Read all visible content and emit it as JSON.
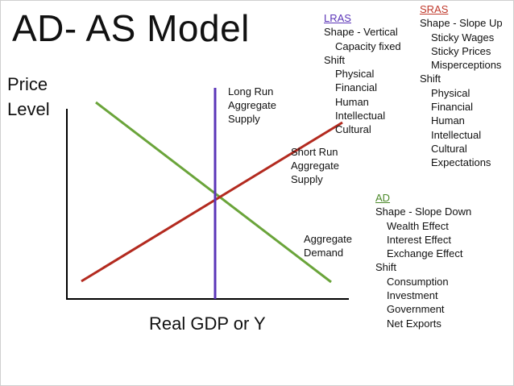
{
  "title": "AD- AS Model",
  "axes": {
    "ylabel_line1": "Price",
    "ylabel_line2": "Level",
    "xlabel": "Real GDP or Y"
  },
  "curves": {
    "lras": {
      "line1": "Long Run",
      "line2": "Aggregate",
      "line3": "Supply",
      "color": "#5b35b8"
    },
    "sras": {
      "line1": "Short Run",
      "line2": "Aggregate",
      "line3": "Supply",
      "color": "#b32a1f"
    },
    "ad": {
      "line1": "Aggregate",
      "line2": "Demand",
      "color": "#6aa43a"
    }
  },
  "notes": {
    "lras": {
      "heading": "LRAS",
      "heading_color": "#5b35b8",
      "items": [
        "Shape - Vertical",
        "Capacity fixed",
        "Shift",
        "Physical",
        "Financial",
        "Human",
        "Intellectual",
        "Cultural"
      ]
    },
    "sras": {
      "heading": "SRAS",
      "heading_color": "#c0392b",
      "items": [
        "Shape - Slope Up",
        "Sticky Wages",
        "Sticky Prices",
        "Misperceptions",
        "Shift",
        "Physical",
        "Financial",
        "Human",
        "Intellectual",
        "Cultural",
        "Expectations"
      ]
    },
    "ad": {
      "heading": "AD",
      "heading_color": "#4c8a2a",
      "items": [
        "Shape - Slope Down",
        "Wealth Effect",
        "Interest Effect",
        "Exchange Effect",
        "Shift",
        "Consumption",
        "Investment",
        "Government",
        "Net Exports"
      ]
    }
  }
}
